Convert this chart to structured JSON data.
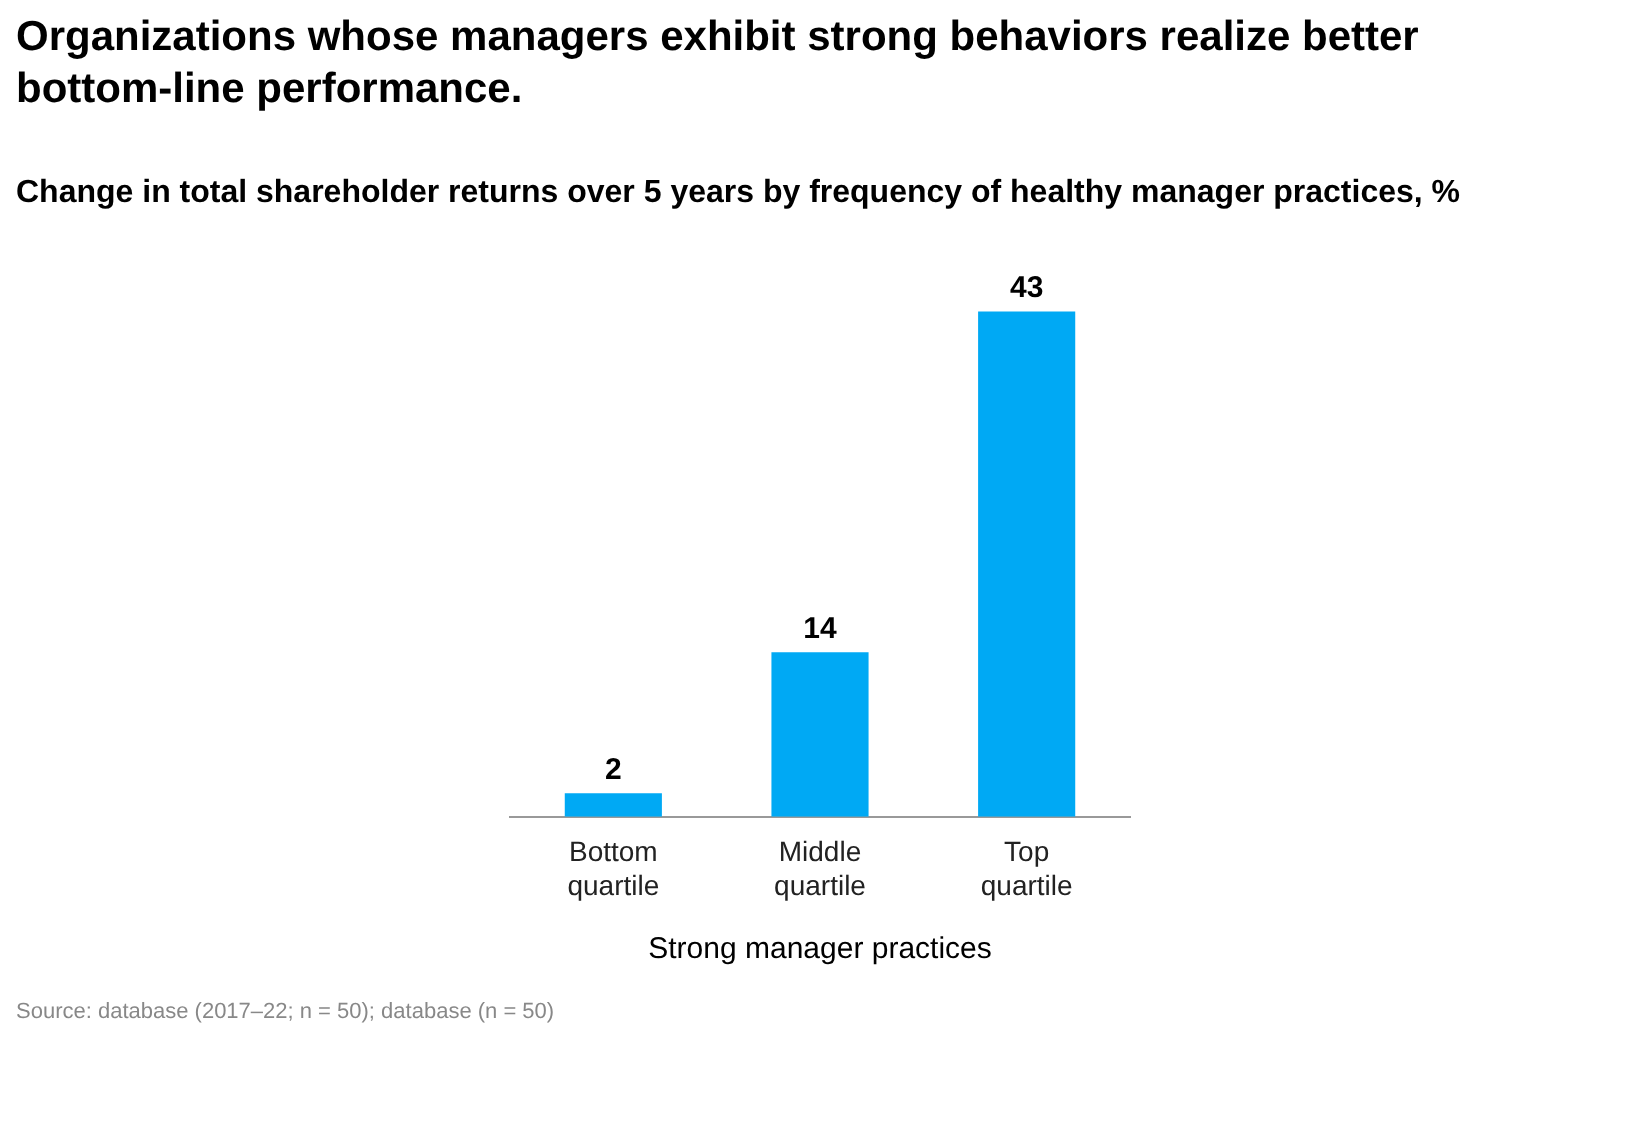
{
  "chart_data": {
    "type": "bar",
    "title": "Organizations whose managers exhibit strong behaviors realize better bottom-line performance.",
    "subtitle": "Change in total shareholder returns over 5 years by frequency of healthy manager practices, %",
    "xlabel": "Strong manager practices",
    "categories": [
      "Bottom quartile",
      "Middle quartile",
      "Top quartile"
    ],
    "values": [
      2,
      14,
      43
    ],
    "color": "#00a9f4",
    "data_labels": true,
    "grid": false,
    "legend": false,
    "annotations": [
      "Source: database (2017–22; n = 50); database (n = 50)"
    ]
  }
}
